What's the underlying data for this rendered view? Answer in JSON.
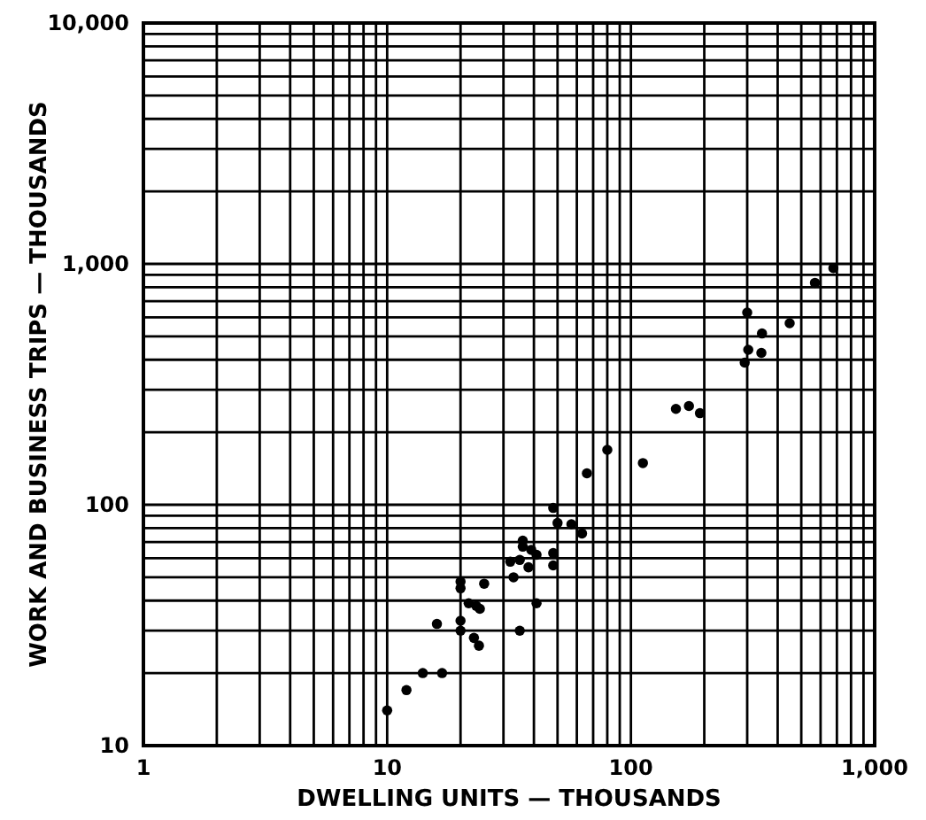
{
  "chart_data": {
    "type": "scatter",
    "xlabel": "DWELLING UNITS — THOUSANDS",
    "ylabel": "WORK AND BUSINESS TRIPS — THOUSANDS",
    "log": "xy",
    "grid": true,
    "marker": "circle",
    "xlim": [
      1,
      1000
    ],
    "ylim": [
      10,
      10000
    ],
    "xticks": [
      1,
      {
        "value": 2,
        "label": null
      },
      {
        "value": 3,
        "label": null
      },
      {
        "value": 4,
        "label": null
      },
      {
        "value": 5,
        "label": null
      },
      {
        "value": 6,
        "label": null
      },
      {
        "value": 7,
        "label": null
      },
      {
        "value": 8,
        "label": null
      },
      {
        "value": 9,
        "label": null
      },
      10,
      {
        "value": 20,
        "label": null
      },
      {
        "value": 30,
        "label": null
      },
      {
        "value": 40,
        "label": null
      },
      {
        "value": 50,
        "label": null
      },
      {
        "value": 60,
        "label": null
      },
      {
        "value": 70,
        "label": null
      },
      {
        "value": 80,
        "label": null
      },
      {
        "value": 90,
        "label": null
      },
      100,
      {
        "value": 200,
        "label": null
      },
      {
        "value": 300,
        "label": null
      },
      {
        "value": 400,
        "label": null
      },
      {
        "value": 500,
        "label": null
      },
      {
        "value": 600,
        "label": null
      },
      {
        "value": 700,
        "label": null
      },
      {
        "value": 800,
        "label": null
      },
      {
        "value": 900,
        "label": null
      },
      {
        "value": 1000,
        "label": "1,000"
      }
    ],
    "yticks": [
      10,
      {
        "value": 20,
        "label": null
      },
      {
        "value": 30,
        "label": null
      },
      {
        "value": 40,
        "label": null
      },
      {
        "value": 50,
        "label": null
      },
      {
        "value": 60,
        "label": null
      },
      {
        "value": 70,
        "label": null
      },
      {
        "value": 80,
        "label": null
      },
      {
        "value": 90,
        "label": null
      },
      100,
      {
        "value": 200,
        "label": null
      },
      {
        "value": 300,
        "label": null
      },
      {
        "value": 400,
        "label": null
      },
      {
        "value": 500,
        "label": null
      },
      {
        "value": 600,
        "label": null
      },
      {
        "value": 700,
        "label": null
      },
      {
        "value": 800,
        "label": null
      },
      {
        "value": 900,
        "label": null
      },
      {
        "value": 1000,
        "label": "1,000"
      },
      {
        "value": 2000,
        "label": null
      },
      {
        "value": 3000,
        "label": null
      },
      {
        "value": 4000,
        "label": null
      },
      {
        "value": 5000,
        "label": null
      },
      {
        "value": 6000,
        "label": null
      },
      {
        "value": 7000,
        "label": null
      },
      {
        "value": 8000,
        "label": null
      },
      {
        "value": 9000,
        "label": null
      },
      {
        "value": 10000,
        "label": "10,000"
      }
    ],
    "series": [
      {
        "color": "#000000",
        "x": [
          10,
          12,
          14,
          16.8,
          16,
          20,
          20,
          20,
          20,
          21.6,
          22.4,
          23.2,
          24,
          25,
          22.7,
          23.8,
          32,
          33,
          35,
          36,
          36,
          35,
          38,
          39,
          41,
          41,
          48,
          50,
          48,
          48,
          57,
          63,
          66,
          80,
          112,
          153,
          173,
          192,
          293,
          300,
          303,
          345,
          343,
          448,
          569,
          677
        ],
        "values": [
          14,
          17,
          20,
          20,
          32,
          30,
          33,
          48,
          45,
          39,
          null,
          38,
          37,
          47,
          28,
          26,
          58,
          50,
          59,
          71,
          67,
          30,
          55,
          65,
          62,
          39,
          97,
          84,
          63,
          56,
          83,
          76,
          135,
          169,
          149,
          250,
          257,
          240,
          389,
          628,
          440,
          514,
          427,
          567,
          834,
          961
        ]
      }
    ]
  }
}
